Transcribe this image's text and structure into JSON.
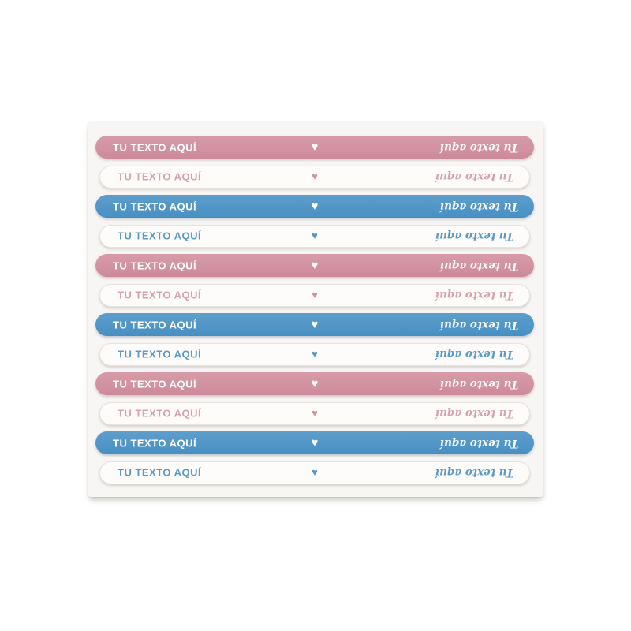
{
  "colors": {
    "pink": "#d292a0",
    "pink_hi": "#d79ba8",
    "pink_lo": "#cc8a99",
    "pink_muted": "#d8a2ad",
    "blue": "#5196c7",
    "blue_hi": "#5e9ecc",
    "blue_lo": "#488fc1",
    "blue_muted": "#5b99c7",
    "sheet_bg": "#f8f6f4",
    "strip_white": "#fdfcfb"
  },
  "sheet": {
    "strips": [
      {
        "variant": "pink-solid",
        "left_text": "TU TEXTO AQUÍ",
        "heart": "♥",
        "right_text": "Tu texto aquí"
      },
      {
        "variant": "pink-outline",
        "left_text": "TU TEXTO AQUÍ",
        "heart": "♥",
        "right_text": "Tu texto aquí"
      },
      {
        "variant": "blue-solid",
        "left_text": "TU TEXTO AQUÍ",
        "heart": "♥",
        "right_text": "Tu texto aquí"
      },
      {
        "variant": "blue-outline",
        "left_text": "TU TEXTO AQUÍ",
        "heart": "♥",
        "right_text": "Tu texto aquí"
      },
      {
        "variant": "pink-solid",
        "left_text": "TU TEXTO AQUÍ",
        "heart": "♥",
        "right_text": "Tu texto aquí"
      },
      {
        "variant": "pink-outline",
        "left_text": "TU TEXTO AQUÍ",
        "heart": "♥",
        "right_text": "Tu texto aquí"
      },
      {
        "variant": "blue-solid",
        "left_text": "TU TEXTO AQUÍ",
        "heart": "♥",
        "right_text": "Tu texto aquí"
      },
      {
        "variant": "blue-outline",
        "left_text": "TU TEXTO AQUÍ",
        "heart": "♥",
        "right_text": "Tu texto aquí"
      },
      {
        "variant": "pink-solid",
        "left_text": "TU TEXTO AQUÍ",
        "heart": "♥",
        "right_text": "Tu texto aquí"
      },
      {
        "variant": "pink-outline",
        "left_text": "TU TEXTO AQUÍ",
        "heart": "♥",
        "right_text": "Tu texto aquí"
      },
      {
        "variant": "blue-solid",
        "left_text": "TU TEXTO AQUÍ",
        "heart": "♥",
        "right_text": "Tu texto aquí"
      },
      {
        "variant": "blue-outline",
        "left_text": "TU TEXTO AQUÍ",
        "heart": "♥",
        "right_text": "Tu texto aquí"
      }
    ]
  }
}
